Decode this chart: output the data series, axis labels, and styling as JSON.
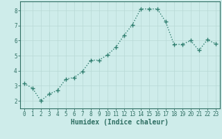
{
  "x": [
    0,
    1,
    2,
    3,
    4,
    5,
    6,
    7,
    8,
    9,
    10,
    11,
    12,
    13,
    14,
    15,
    16,
    17,
    18,
    19,
    20,
    21,
    22,
    23
  ],
  "y": [
    3.15,
    2.85,
    2.0,
    2.45,
    2.7,
    3.45,
    3.55,
    3.95,
    4.7,
    4.7,
    5.05,
    5.55,
    6.35,
    7.05,
    8.1,
    8.1,
    8.1,
    7.25,
    5.75,
    5.75,
    6.0,
    5.35,
    6.05,
    5.8
  ],
  "line_color": "#2e7d6e",
  "marker": "+",
  "marker_size": 4,
  "bg_color": "#ceecea",
  "grid_color": "#b8d8d5",
  "xlabel": "Humidex (Indice chaleur)",
  "xlim": [
    -0.5,
    23.5
  ],
  "ylim": [
    1.5,
    8.6
  ],
  "yticks": [
    2,
    3,
    4,
    5,
    6,
    7,
    8
  ],
  "xticks": [
    0,
    1,
    2,
    3,
    4,
    5,
    6,
    7,
    8,
    9,
    10,
    11,
    12,
    13,
    14,
    15,
    16,
    17,
    18,
    19,
    20,
    21,
    22,
    23
  ],
  "tick_color": "#2e6e62",
  "label_fontsize": 5.5,
  "xlabel_fontsize": 7,
  "line_width": 1.0
}
